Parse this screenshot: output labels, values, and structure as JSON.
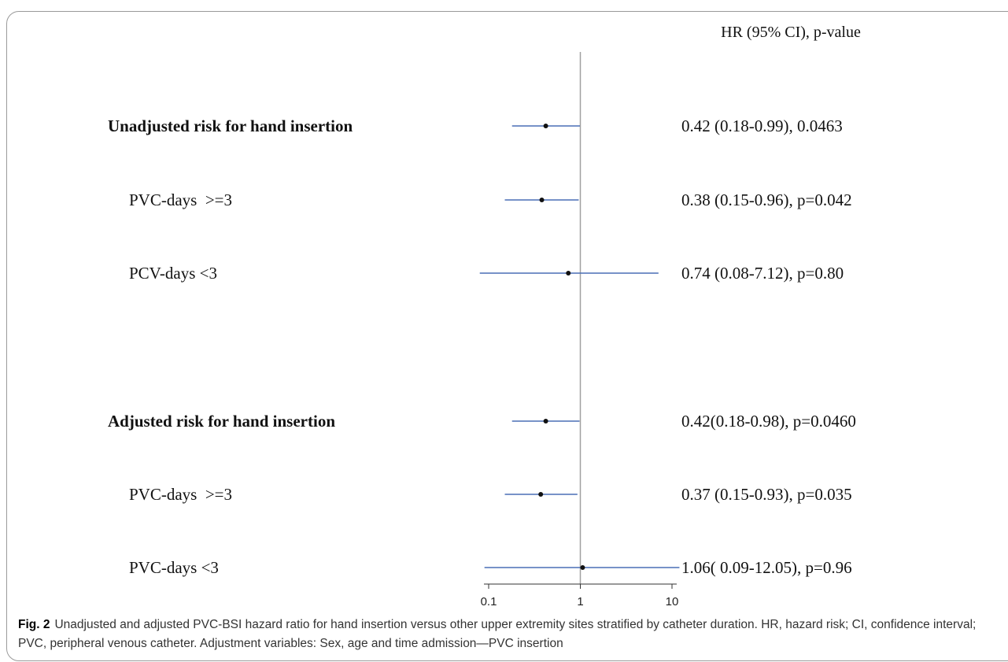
{
  "chart_data": {
    "type": "forest",
    "title": "",
    "column_header": "HR (95% CI), p-value",
    "xscale": "log",
    "xlim": [
      0.1,
      10
    ],
    "reference_line": 1,
    "x_ticks": [
      {
        "value": 0.1,
        "label": "0.1"
      },
      {
        "value": 1,
        "label": "1"
      },
      {
        "value": 10,
        "label": "10"
      }
    ],
    "rows": [
      {
        "label": "Unadjusted risk for hand insertion",
        "bold": true,
        "hr": 0.42,
        "lower": 0.18,
        "upper": 0.99,
        "text": "0.42 (0.18-0.99), 0.0463"
      },
      {
        "label": "PVC-days  >=3",
        "bold": false,
        "hr": 0.38,
        "lower": 0.15,
        "upper": 0.96,
        "text": "0.38 (0.15-0.96), p=0.042"
      },
      {
        "label": "PCV-days <3",
        "bold": false,
        "hr": 0.74,
        "lower": 0.08,
        "upper": 7.12,
        "text": "0.74 (0.08-7.12), p=0.80"
      },
      {
        "label": "Adjusted risk for hand insertion",
        "bold": true,
        "hr": 0.42,
        "lower": 0.18,
        "upper": 0.98,
        "text": "0.42(0.18-0.98), p=0.0460"
      },
      {
        "label": "PVC-days  >=3",
        "bold": false,
        "hr": 0.37,
        "lower": 0.15,
        "upper": 0.93,
        "text": "0.37 (0.15-0.93), p=0.035"
      },
      {
        "label": "PVC-days <3",
        "bold": false,
        "hr": 1.06,
        "lower": 0.09,
        "upper": 12.05,
        "text": "1.06( 0.09-12.05), p=0.96"
      }
    ],
    "colors": {
      "ci_line": "#4a6fb5",
      "point": "#111111",
      "reference_line": "#a0a0a0",
      "axis": "#333333"
    }
  },
  "caption": {
    "label": "Fig. 2",
    "text": "Unadjusted and adjusted PVC-BSI hazard ratio for hand insertion versus other upper extremity sites stratified by catheter duration. HR, hazard risk; CI, confidence interval; PVC, peripheral venous catheter. Adjustment variables: Sex, age and time admission—PVC insertion"
  }
}
